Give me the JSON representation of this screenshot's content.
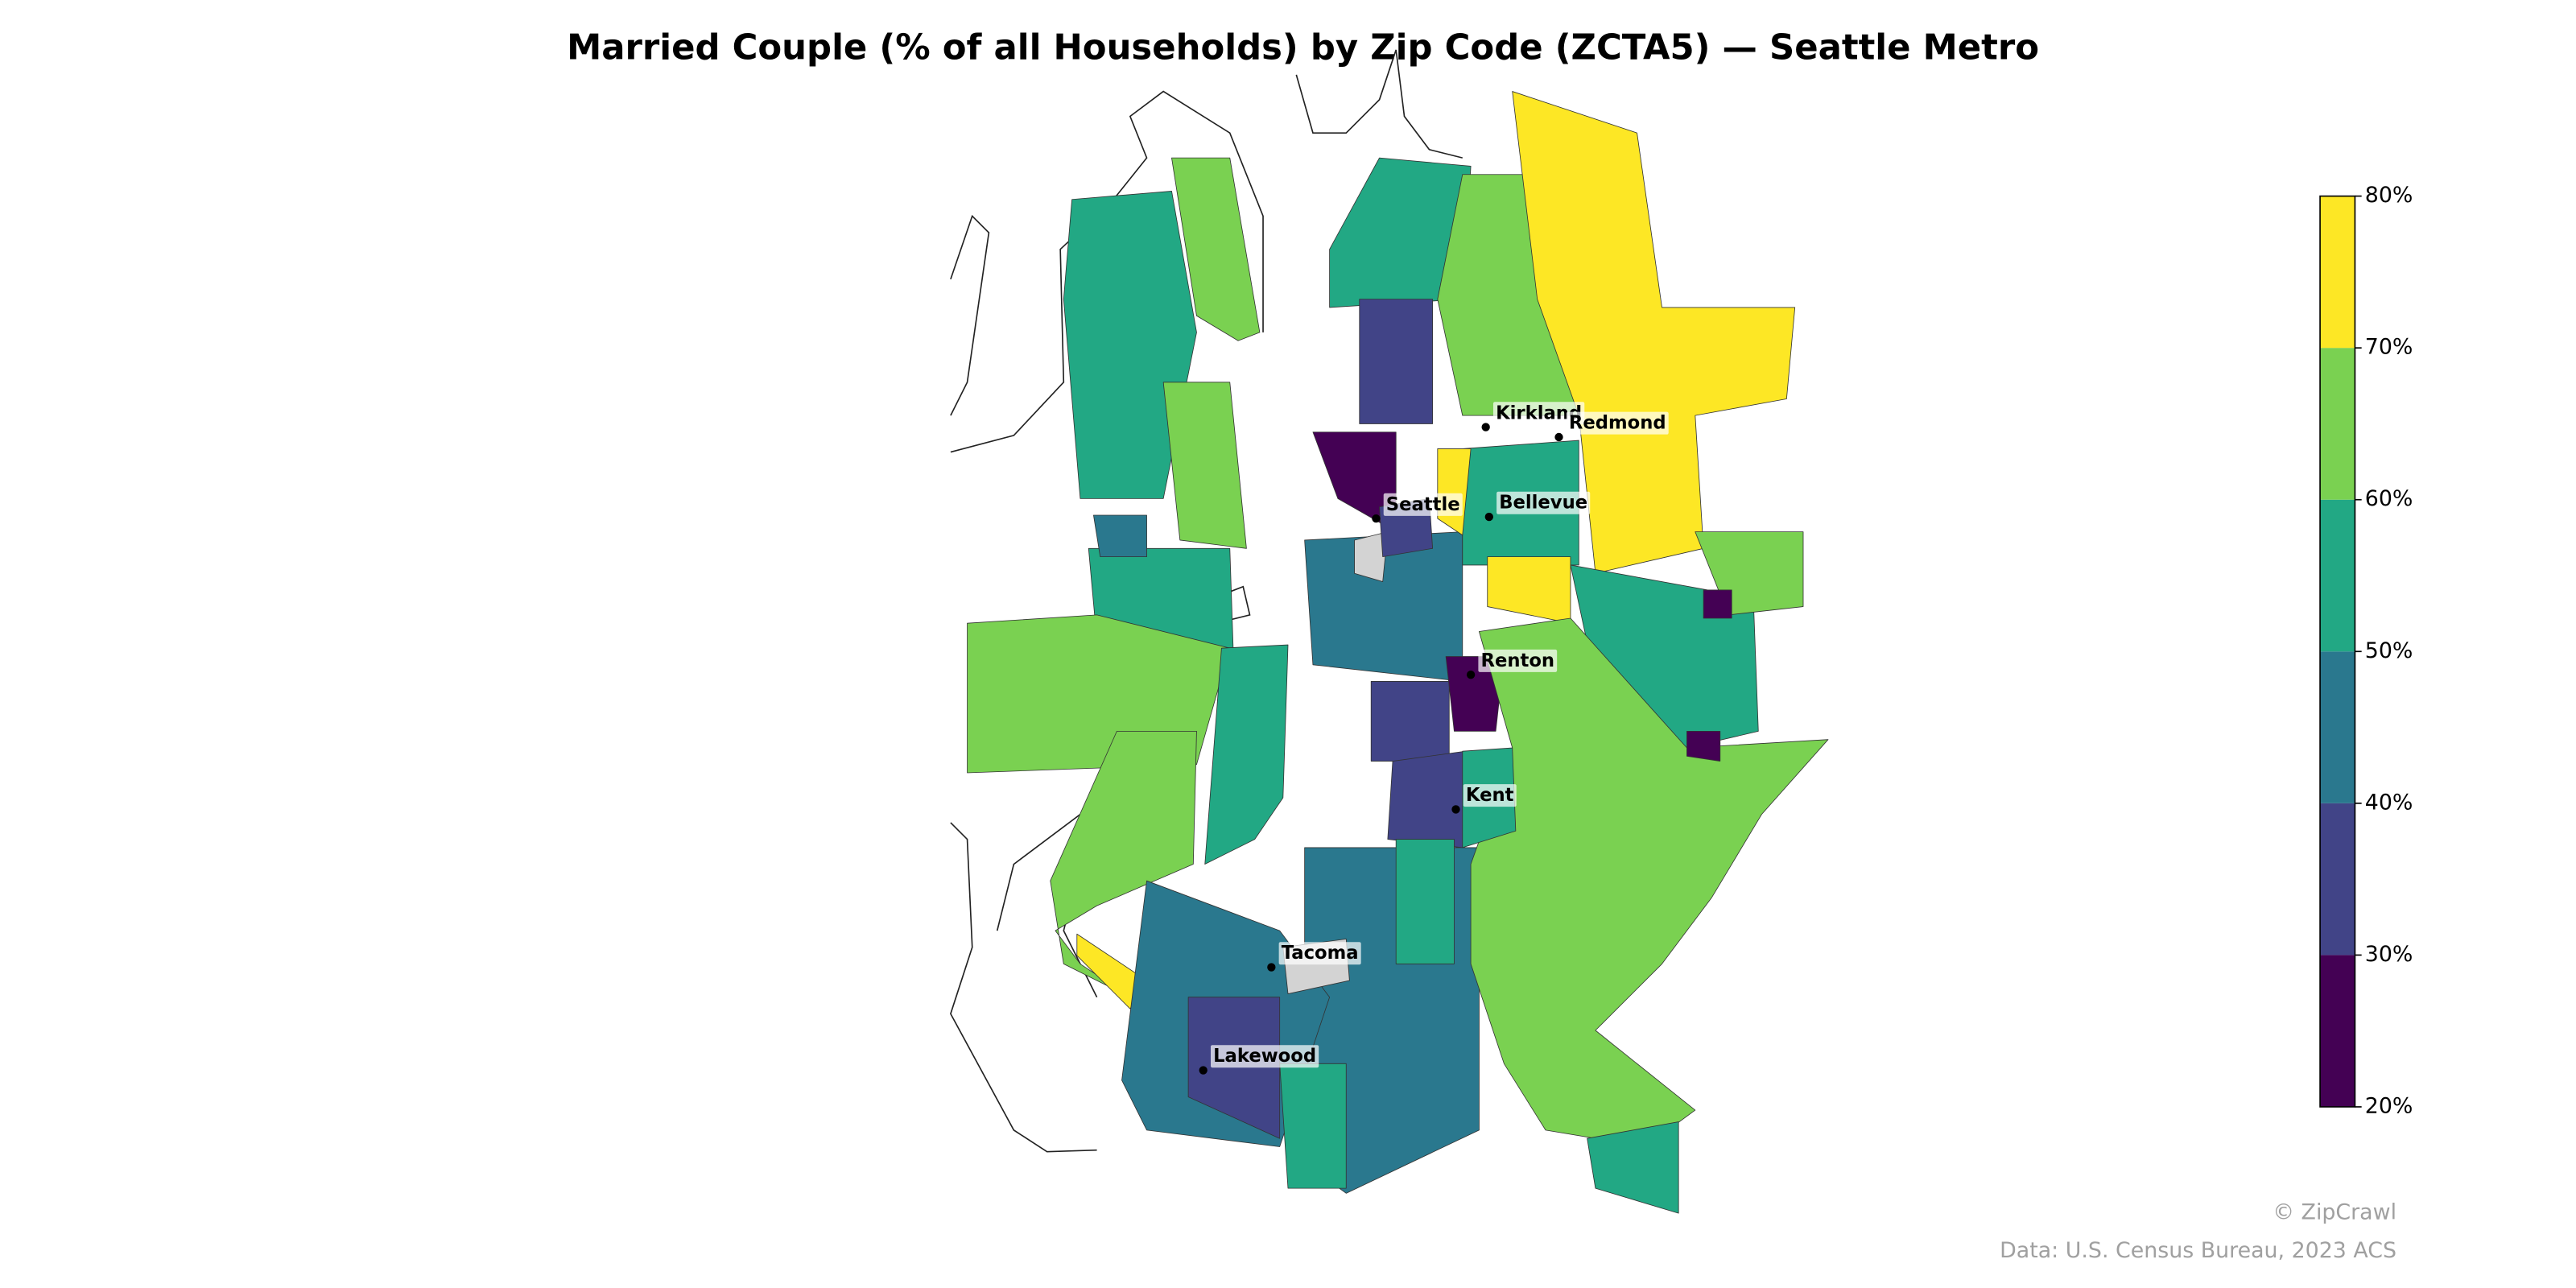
{
  "chart_data": {
    "type": "choropleth",
    "title": "Married Couple (% of all Households) by Zip Code (ZCTA5) — Seattle Metro",
    "values": [
      55,
      65,
      65,
      55,
      65,
      65,
      55,
      75,
      55,
      35,
      25,
      45,
      35,
      35,
      25,
      45,
      55,
      45,
      35,
      55,
      65,
      55,
      75,
      75,
      75,
      55,
      65,
      65,
      25,
      25,
      55,
      55,
      null,
      null,
      45,
      35
    ],
    "colors": [
      "#440154",
      "#414487",
      "#2a788e",
      "#22a884",
      "#7ad151",
      "#fde725"
    ],
    "null_color": "#d3d3d3",
    "cticks": [
      {
        "value": 20,
        "label": "20%"
      },
      {
        "value": 30,
        "label": "30%"
      },
      {
        "value": 40,
        "label": "40%"
      },
      {
        "value": 50,
        "label": "50%"
      },
      {
        "value": 60,
        "label": "60%"
      },
      {
        "value": 70,
        "label": "70%"
      },
      {
        "value": 80,
        "label": "80%"
      }
    ],
    "cities": [
      "Seattle",
      "Kirkland",
      "Redmond",
      "Bellevue",
      "Renton",
      "Kent",
      "Tacoma",
      "Lakewood"
    ],
    "credits": [
      "© ZipCrawl",
      "Data: U.S. Census Bureau, 2023 ACS"
    ]
  }
}
